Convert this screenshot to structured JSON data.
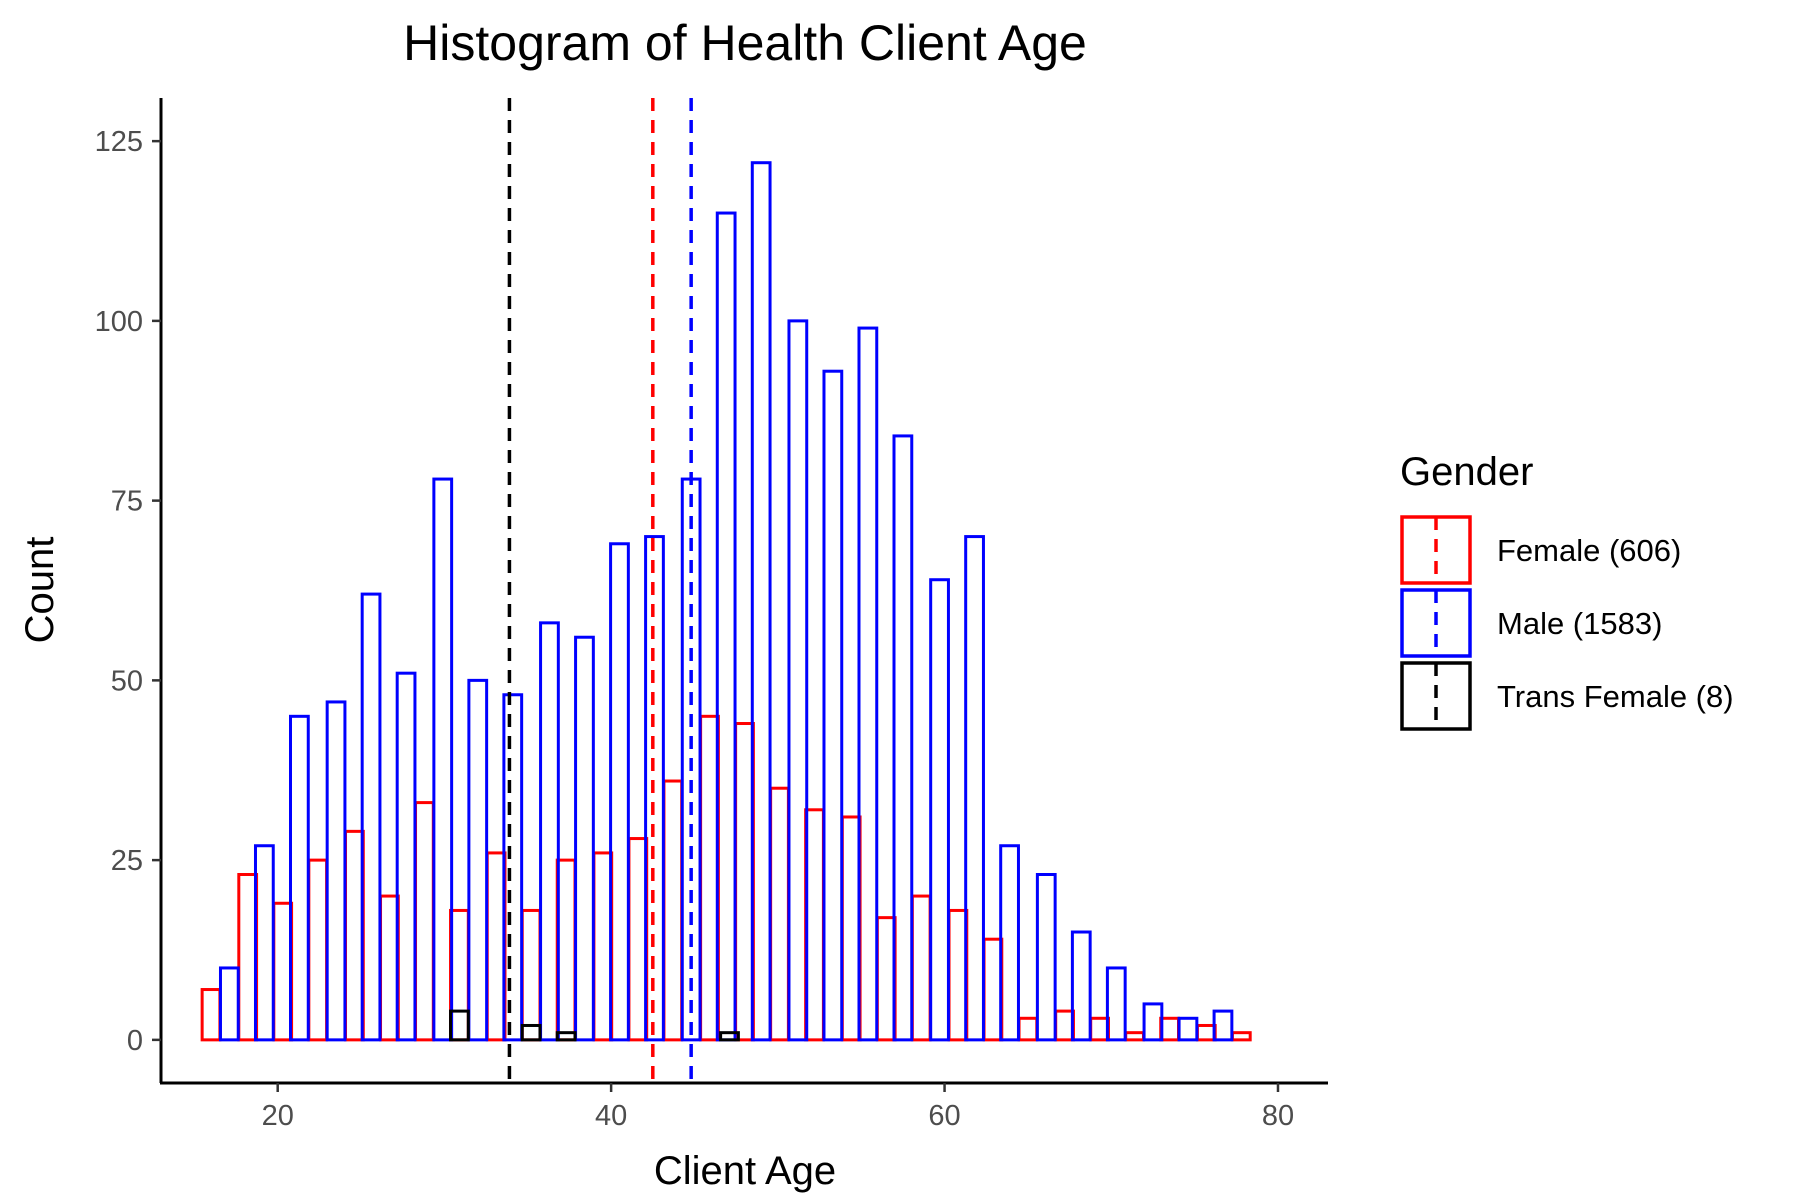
{
  "chart_data": {
    "type": "bar",
    "title": "Histogram of Health Client Age",
    "xlabel": "Client Age",
    "ylabel": "Count",
    "xlim": [
      13,
      83
    ],
    "ylim": [
      -6,
      131
    ],
    "x_ticks": [
      20,
      40,
      60,
      80
    ],
    "y_ticks": [
      0,
      25,
      50,
      75,
      100,
      125
    ],
    "bin_width": 2.13,
    "grid": false,
    "legend": {
      "title": "Gender",
      "placement": "right",
      "entries": [
        {
          "label": "Female (606)",
          "color": "#ff0000"
        },
        {
          "label": "Male (1583)",
          "color": "#0000ff"
        },
        {
          "label": "Trans Female (8)",
          "color": "#000000"
        }
      ]
    },
    "series": [
      {
        "name": "Female (606)",
        "color": "#ff0000",
        "mean_line": 42.5,
        "x": [
          16.0,
          18.2,
          20.3,
          22.4,
          24.6,
          26.7,
          28.8,
          30.9,
          33.1,
          35.2,
          37.3,
          39.5,
          41.6,
          43.7,
          45.9,
          48.0,
          50.1,
          52.2,
          54.4,
          56.5,
          58.6,
          60.8,
          62.9,
          65.0,
          67.2,
          69.3,
          71.4,
          73.5,
          75.7,
          77.8
        ],
        "values": [
          7,
          23,
          19,
          25,
          29,
          20,
          33,
          18,
          26,
          18,
          25,
          26,
          28,
          36,
          45,
          44,
          35,
          32,
          31,
          17,
          20,
          18,
          14,
          3,
          4,
          3,
          1,
          3,
          2,
          1
        ]
      },
      {
        "name": "Male (1583)",
        "color": "#0000ff",
        "mean_line": 44.8,
        "x": [
          17.1,
          19.2,
          21.3,
          23.5,
          25.6,
          27.7,
          29.9,
          32.0,
          34.1,
          36.3,
          38.4,
          40.5,
          42.6,
          44.8,
          46.9,
          49.0,
          51.2,
          53.3,
          55.4,
          57.5,
          59.7,
          61.8,
          63.9,
          66.1,
          68.2,
          70.3,
          72.5,
          74.6,
          76.7,
          78.8
        ],
        "values": [
          10,
          27,
          45,
          47,
          62,
          51,
          78,
          50,
          48,
          58,
          56,
          69,
          70,
          78,
          115,
          122,
          100,
          93,
          99,
          84,
          64,
          70,
          27,
          23,
          15,
          10,
          5,
          3,
          4,
          0
        ]
      },
      {
        "name": "Trans Female (8)",
        "color": "#000000",
        "mean_line": 33.9,
        "x": [
          30.9,
          35.2,
          37.3,
          43.7,
          47.1
        ],
        "values": [
          4,
          2,
          1,
          0,
          1
        ]
      }
    ]
  }
}
